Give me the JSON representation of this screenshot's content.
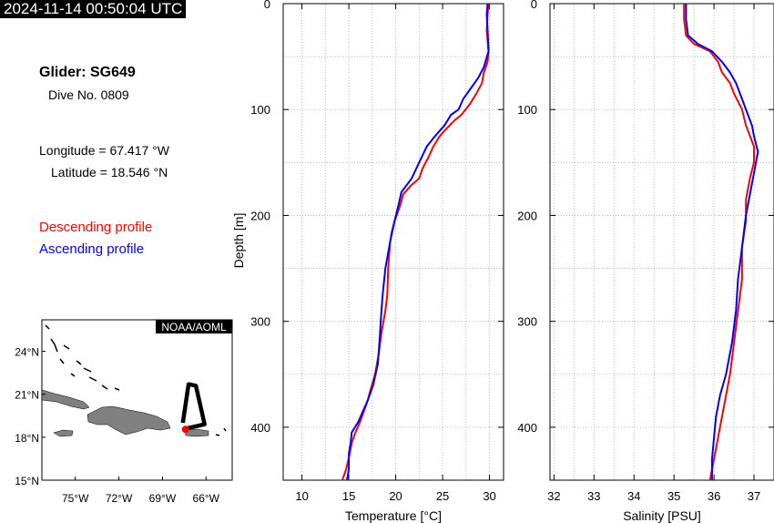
{
  "header": {
    "timestamp": "2024-11-14 00:50:04 UTC",
    "glider": "Glider: SG649",
    "dive": "Dive No. 0809",
    "longitude": "Longitude = 67.417 °W",
    "latitude": "Latitude = 18.546 °N"
  },
  "legend": {
    "descending": "Descending profile",
    "ascending": "Ascending profile",
    "descending_color": "#ff0000",
    "ascending_color": "#0000ff"
  },
  "map": {
    "credit": "NOAA/AOML",
    "lat_labels": [
      "24°N",
      "21°N",
      "18°N",
      "15°N"
    ],
    "lon_labels": [
      "75°W",
      "72°W",
      "69°W",
      "66°W"
    ],
    "lat_values": [
      24,
      21,
      18,
      15
    ],
    "lon_values": [
      -75,
      -72,
      -69,
      -66
    ],
    "lat_range": [
      15,
      26.2
    ],
    "lon_range": [
      -77.3,
      -64.2
    ],
    "glider_position": {
      "lon": -67.417,
      "lat": 18.546
    },
    "track": [
      [
        -67.6,
        19.0
      ],
      [
        -67.2,
        21.7
      ],
      [
        -66.7,
        21.6
      ],
      [
        -66.1,
        18.9
      ],
      [
        -67.4,
        18.6
      ]
    ],
    "land_color": "#808080",
    "track_color": "#000000",
    "marker_color": "#ff0000"
  },
  "chart_data": [
    {
      "type": "line",
      "xlabel": "Temperature [°C]",
      "ylabel": "Depth [m]",
      "xlim": [
        8,
        31.5
      ],
      "ylim": [
        450,
        0
      ],
      "xticks": [
        10,
        15,
        20,
        25,
        30
      ],
      "yticks": [
        0,
        100,
        200,
        300,
        400
      ],
      "grid": true,
      "series": [
        {
          "name": "Descending profile",
          "color": "#ff0000",
          "x": [
            29.9,
            29.8,
            29.7,
            29.9,
            29.8,
            29.4,
            29.2,
            28.6,
            27.9,
            27.0,
            26.3,
            25.2,
            24.7,
            24.0,
            23.5,
            22.9,
            22.5,
            21.6,
            20.8,
            20.5,
            19.9,
            19.4,
            19.2,
            19.1,
            18.9,
            18.5,
            18.2,
            17.8,
            17.3,
            17.0,
            16.6,
            16.2,
            15.7,
            15.3,
            15.1,
            14.7,
            14.3
          ],
          "y": [
            0,
            10,
            25,
            45,
            55,
            65,
            75,
            85,
            95,
            105,
            110,
            120,
            125,
            135,
            145,
            155,
            165,
            172,
            180,
            190,
            205,
            225,
            250,
            275,
            290,
            310,
            330,
            350,
            365,
            375,
            385,
            395,
            405,
            415,
            425,
            440,
            450
          ]
        },
        {
          "name": "Ascending profile",
          "color": "#0000ff",
          "x": [
            29.8,
            29.7,
            29.8,
            29.9,
            29.4,
            28.8,
            28.0,
            27.2,
            26.7,
            25.9,
            25.2,
            24.2,
            23.3,
            22.5,
            21.7,
            20.6,
            20.3,
            19.6,
            18.9,
            18.6,
            18.4,
            18.3,
            18.1,
            17.6,
            17.0,
            16.5,
            16.0,
            15.3,
            15.2,
            15.0,
            15.0,
            14.8
          ],
          "y": [
            0,
            10,
            25,
            45,
            60,
            70,
            80,
            90,
            100,
            105,
            115,
            125,
            135,
            150,
            165,
            178,
            190,
            215,
            250,
            275,
            300,
            315,
            340,
            360,
            375,
            385,
            395,
            405,
            415,
            425,
            440,
            450
          ]
        }
      ]
    },
    {
      "type": "line",
      "xlabel": "Salinity [PSU]",
      "ylabel": "",
      "xlim": [
        31.9,
        37.5
      ],
      "ylim": [
        450,
        0
      ],
      "xticks": [
        32,
        33,
        34,
        35,
        36,
        37
      ],
      "yticks": [
        0,
        100,
        200,
        300,
        400
      ],
      "grid": true,
      "series": [
        {
          "name": "Descending profile",
          "color": "#ff0000",
          "x": [
            35.25,
            35.25,
            35.3,
            35.5,
            35.9,
            36.1,
            36.2,
            36.4,
            36.5,
            36.7,
            36.8,
            36.9,
            37.0,
            37.0,
            36.9,
            36.8,
            36.8,
            36.7,
            36.7,
            36.6,
            36.5,
            36.4,
            36.3,
            36.2,
            36.1,
            36.0,
            35.9
          ],
          "y": [
            0,
            15,
            30,
            38,
            45,
            55,
            65,
            75,
            85,
            100,
            115,
            125,
            135,
            150,
            165,
            185,
            205,
            230,
            260,
            290,
            320,
            350,
            370,
            390,
            410,
            430,
            450
          ]
        },
        {
          "name": "Ascending profile",
          "color": "#0000ff",
          "x": [
            35.3,
            35.3,
            35.35,
            35.6,
            35.95,
            36.2,
            36.4,
            36.55,
            36.7,
            36.85,
            36.95,
            37.0,
            37.1,
            37.0,
            36.9,
            36.8,
            36.7,
            36.6,
            36.55,
            36.45,
            36.3,
            36.15,
            36.05,
            36.0,
            35.95,
            35.95
          ],
          "y": [
            0,
            15,
            30,
            38,
            45,
            55,
            65,
            75,
            90,
            105,
            115,
            125,
            140,
            160,
            180,
            200,
            230,
            260,
            290,
            320,
            350,
            370,
            390,
            410,
            430,
            450
          ]
        }
      ]
    }
  ]
}
